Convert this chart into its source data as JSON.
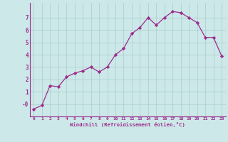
{
  "x": [
    0,
    1,
    2,
    3,
    4,
    5,
    6,
    7,
    8,
    9,
    10,
    11,
    12,
    13,
    14,
    15,
    16,
    17,
    18,
    19,
    20,
    21,
    22,
    23
  ],
  "y": [
    -0.4,
    -0.1,
    1.5,
    1.4,
    2.2,
    2.5,
    2.7,
    3.0,
    2.6,
    3.0,
    4.0,
    4.5,
    5.7,
    6.2,
    7.0,
    6.4,
    7.0,
    7.5,
    7.4,
    7.0,
    6.6,
    5.4,
    5.4,
    3.9
  ],
  "line_color": "#9b2d8e",
  "marker": "D",
  "marker_size": 2.2,
  "bg_color": "#cce8e8",
  "grid_color": "#aacccc",
  "xlabel": "Windchill (Refroidissement éolien,°C)",
  "xlim": [
    -0.5,
    23.5
  ],
  "ylim": [
    -1.0,
    8.2
  ],
  "yticks": [
    0,
    1,
    2,
    3,
    4,
    5,
    6,
    7
  ],
  "ytick_labels": [
    "-0",
    "1",
    "2",
    "3",
    "4",
    "5",
    "6",
    "7"
  ],
  "xtick_labels": [
    "0",
    "1",
    "2",
    "3",
    "4",
    "5",
    "6",
    "7",
    "8",
    "9",
    "10",
    "11",
    "12",
    "13",
    "14",
    "15",
    "16",
    "17",
    "18",
    "19",
    "20",
    "21",
    "22",
    "23"
  ]
}
